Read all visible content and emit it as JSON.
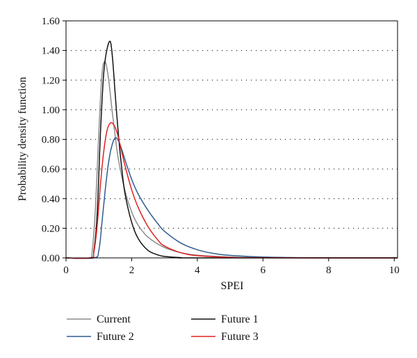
{
  "chart_data": {
    "type": "line",
    "xlabel": "SPEI",
    "ylabel": "Probability density function",
    "xlim": [
      0,
      10.1
    ],
    "ylim": [
      0,
      1.6
    ],
    "x_ticks": [
      0,
      2,
      4,
      6,
      8,
      10
    ],
    "x_tick_labels": [
      "0",
      "2",
      "4",
      "6",
      "8",
      "10"
    ],
    "y_ticks": [
      0,
      0.2,
      0.4,
      0.6,
      0.8,
      1.0,
      1.2,
      1.4,
      1.6
    ],
    "y_tick_labels": [
      "0.00",
      "0.20",
      "0.40",
      "0.60",
      "0.80",
      "1.00",
      "1.20",
      "1.40",
      "1.60"
    ],
    "grid": "horizontal dotted",
    "legend_position": "bottom",
    "series": [
      {
        "name": "Current",
        "color": "#8c8c8c",
        "x": [
          0,
          0.7,
          0.8,
          0.9,
          1.0,
          1.1,
          1.2,
          1.3,
          1.4,
          1.5,
          1.6,
          1.8,
          2.0,
          2.2,
          2.5,
          3.0,
          3.5,
          4.0,
          5.0,
          6.0,
          7.0,
          8.0,
          10.1
        ],
        "values": [
          0,
          0,
          0.05,
          0.35,
          0.85,
          1.25,
          1.32,
          1.2,
          1.0,
          0.82,
          0.66,
          0.45,
          0.31,
          0.22,
          0.14,
          0.07,
          0.035,
          0.018,
          0.006,
          0.002,
          0.001,
          0,
          0
        ]
      },
      {
        "name": "Future 1",
        "color": "#111111",
        "x": [
          0,
          0.75,
          0.85,
          0.95,
          1.05,
          1.15,
          1.25,
          1.35,
          1.42,
          1.5,
          1.6,
          1.7,
          1.8,
          2.0,
          2.2,
          2.5,
          2.8,
          3.0,
          3.5,
          4.0,
          10.1
        ],
        "values": [
          0,
          0,
          0.05,
          0.3,
          0.85,
          1.25,
          1.41,
          1.46,
          1.34,
          1.1,
          0.82,
          0.6,
          0.43,
          0.24,
          0.13,
          0.05,
          0.02,
          0.01,
          0.002,
          0,
          0
        ]
      },
      {
        "name": "Future 2",
        "color": "#2e5c8f",
        "x": [
          0,
          0.85,
          1.0,
          1.1,
          1.2,
          1.3,
          1.4,
          1.5,
          1.6,
          1.7,
          1.8,
          2.0,
          2.2,
          2.5,
          2.8,
          3.0,
          3.5,
          4.0,
          4.5,
          5.0,
          6.0,
          7.0,
          8.0,
          10.1
        ],
        "values": [
          0,
          0,
          0.05,
          0.25,
          0.47,
          0.65,
          0.76,
          0.81,
          0.79,
          0.73,
          0.66,
          0.53,
          0.43,
          0.32,
          0.23,
          0.18,
          0.1,
          0.055,
          0.03,
          0.017,
          0.006,
          0.002,
          0.001,
          0
        ]
      },
      {
        "name": "Future 3",
        "color": "#e02020",
        "x": [
          0,
          0.75,
          0.85,
          0.95,
          1.05,
          1.15,
          1.25,
          1.35,
          1.45,
          1.55,
          1.65,
          1.8,
          2.0,
          2.2,
          2.5,
          2.8,
          3.0,
          3.5,
          4.0,
          5.0,
          6.0,
          8.0,
          10.1
        ],
        "values": [
          0,
          0,
          0.04,
          0.22,
          0.5,
          0.72,
          0.86,
          0.91,
          0.9,
          0.85,
          0.76,
          0.62,
          0.46,
          0.34,
          0.21,
          0.12,
          0.08,
          0.035,
          0.015,
          0.003,
          0.001,
          0,
          0
        ]
      }
    ]
  }
}
